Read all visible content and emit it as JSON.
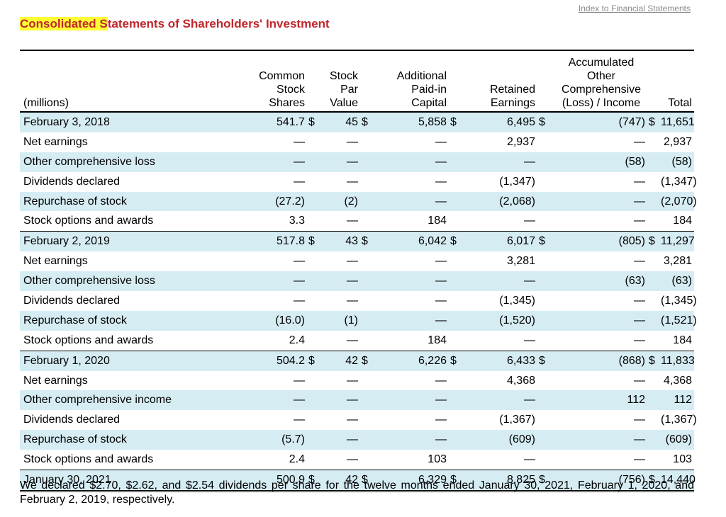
{
  "index_link": "Index to Financial Statements",
  "title_highlight": "Consolidated S",
  "title_rest": "tatements of Shareholders' Investment",
  "headers": {
    "units": "(millions)",
    "shares": [
      "Common",
      "Stock",
      "Shares"
    ],
    "par": [
      "Stock",
      "Par",
      "Value"
    ],
    "apic": [
      "Additional",
      "Paid-in",
      "Capital"
    ],
    "retained": [
      "Retained",
      "Earnings"
    ],
    "aoci": [
      "Accumulated Other",
      "Comprehensive",
      "(Loss) / Income"
    ],
    "total": "Total"
  },
  "rows": [
    {
      "label": "February 3, 2018",
      "shares": "541.7",
      "shares_cur": "$",
      "par": "45",
      "par_cur": "$",
      "apic": "5,858",
      "apic_cur": "$",
      "re": "6,495",
      "re_cur": "$",
      "aoci": "(747)",
      "total_cur": "$",
      "total": "11,651"
    },
    {
      "label": "Net earnings",
      "shares": "—",
      "shares_cur": "",
      "par": "—",
      "par_cur": "",
      "apic": "—",
      "apic_cur": "",
      "re": "2,937",
      "re_cur": "",
      "aoci": "—",
      "total_cur": "",
      "total": "2,937"
    },
    {
      "label": "Other comprehensive loss",
      "shares": "—",
      "shares_cur": "",
      "par": "—",
      "par_cur": "",
      "apic": "—",
      "apic_cur": "",
      "re": "—",
      "re_cur": "",
      "aoci": "(58)",
      "total_cur": "",
      "total": "(58)"
    },
    {
      "label": "Dividends declared",
      "shares": "—",
      "shares_cur": "",
      "par": "—",
      "par_cur": "",
      "apic": "—",
      "apic_cur": "",
      "re": "(1,347)",
      "re_cur": "",
      "aoci": "—",
      "total_cur": "",
      "total": "(1,347)"
    },
    {
      "label": "Repurchase of stock",
      "shares": "(27.2)",
      "shares_cur": "",
      "par": "(2)",
      "par_cur": "",
      "apic": "—",
      "apic_cur": "",
      "re": "(2,068)",
      "re_cur": "",
      "aoci": "—",
      "total_cur": "",
      "total": "(2,070)"
    },
    {
      "label": "Stock options and awards",
      "shares": "3.3",
      "shares_cur": "",
      "par": "—",
      "par_cur": "",
      "apic": "184",
      "apic_cur": "",
      "re": "—",
      "re_cur": "",
      "aoci": "—",
      "total_cur": "",
      "total": "184"
    },
    {
      "label": "February 2, 2019",
      "shares": "517.8",
      "shares_cur": "$",
      "par": "43",
      "par_cur": "$",
      "apic": "6,042",
      "apic_cur": "$",
      "re": "6,017",
      "re_cur": "$",
      "aoci": "(805)",
      "total_cur": "$",
      "total": "11,297"
    },
    {
      "label": "Net earnings",
      "shares": "—",
      "shares_cur": "",
      "par": "—",
      "par_cur": "",
      "apic": "—",
      "apic_cur": "",
      "re": "3,281",
      "re_cur": "",
      "aoci": "—",
      "total_cur": "",
      "total": "3,281"
    },
    {
      "label": "Other comprehensive loss",
      "shares": "—",
      "shares_cur": "",
      "par": "—",
      "par_cur": "",
      "apic": "—",
      "apic_cur": "",
      "re": "—",
      "re_cur": "",
      "aoci": "(63)",
      "total_cur": "",
      "total": "(63)"
    },
    {
      "label": "Dividends declared",
      "shares": "—",
      "shares_cur": "",
      "par": "—",
      "par_cur": "",
      "apic": "—",
      "apic_cur": "",
      "re": "(1,345)",
      "re_cur": "",
      "aoci": "—",
      "total_cur": "",
      "total": "(1,345)"
    },
    {
      "label": "Repurchase of stock",
      "shares": "(16.0)",
      "shares_cur": "",
      "par": "(1)",
      "par_cur": "",
      "apic": "—",
      "apic_cur": "",
      "re": "(1,520)",
      "re_cur": "",
      "aoci": "—",
      "total_cur": "",
      "total": "(1,521)"
    },
    {
      "label": "Stock options and awards",
      "shares": "2.4",
      "shares_cur": "",
      "par": "—",
      "par_cur": "",
      "apic": "184",
      "apic_cur": "",
      "re": "—",
      "re_cur": "",
      "aoci": "—",
      "total_cur": "",
      "total": "184"
    },
    {
      "label": "February 1, 2020",
      "shares": "504.2",
      "shares_cur": "$",
      "par": "42",
      "par_cur": "$",
      "apic": "6,226",
      "apic_cur": "$",
      "re": "6,433",
      "re_cur": "$",
      "aoci": "(868)",
      "total_cur": "$",
      "total": "11,833"
    },
    {
      "label": "Net earnings",
      "shares": "—",
      "shares_cur": "",
      "par": "—",
      "par_cur": "",
      "apic": "—",
      "apic_cur": "",
      "re": "4,368",
      "re_cur": "",
      "aoci": "—",
      "total_cur": "",
      "total": "4,368"
    },
    {
      "label": "Other comprehensive income",
      "shares": "—",
      "shares_cur": "",
      "par": "—",
      "par_cur": "",
      "apic": "—",
      "apic_cur": "",
      "re": "—",
      "re_cur": "",
      "aoci": "112",
      "total_cur": "",
      "total": "112"
    },
    {
      "label": "Dividends declared",
      "shares": "—",
      "shares_cur": "",
      "par": "—",
      "par_cur": "",
      "apic": "—",
      "apic_cur": "",
      "re": "(1,367)",
      "re_cur": "",
      "aoci": "—",
      "total_cur": "",
      "total": "(1,367)"
    },
    {
      "label": "Repurchase of stock",
      "shares": "(5.7)",
      "shares_cur": "",
      "par": "—",
      "par_cur": "",
      "apic": "—",
      "apic_cur": "",
      "re": "(609)",
      "re_cur": "",
      "aoci": "—",
      "total_cur": "",
      "total": "(609)"
    },
    {
      "label": "Stock options and awards",
      "shares": "2.4",
      "shares_cur": "",
      "par": "—",
      "par_cur": "",
      "apic": "103",
      "apic_cur": "",
      "re": "—",
      "re_cur": "",
      "aoci": "—",
      "total_cur": "",
      "total": "103"
    },
    {
      "label": "January 30, 2021",
      "shares": "500.9",
      "shares_cur": "$",
      "par": "42",
      "par_cur": "$",
      "apic": "6,329",
      "apic_cur": "$",
      "re": "8,825",
      "re_cur": "$",
      "aoci": "(756)",
      "total_cur": "$",
      "total": "14,440"
    }
  ],
  "footnote": "We declared $2.70, $2.62, and $2.54 dividends per share for the twelve months ended January 30, 2021, February 1, 2020, and February 2, 2019, respectively.",
  "colors": {
    "title": "#c0262c",
    "highlight": "#ffff33",
    "row_shade": "#d6ecf3",
    "link": "#8a8a8a"
  }
}
